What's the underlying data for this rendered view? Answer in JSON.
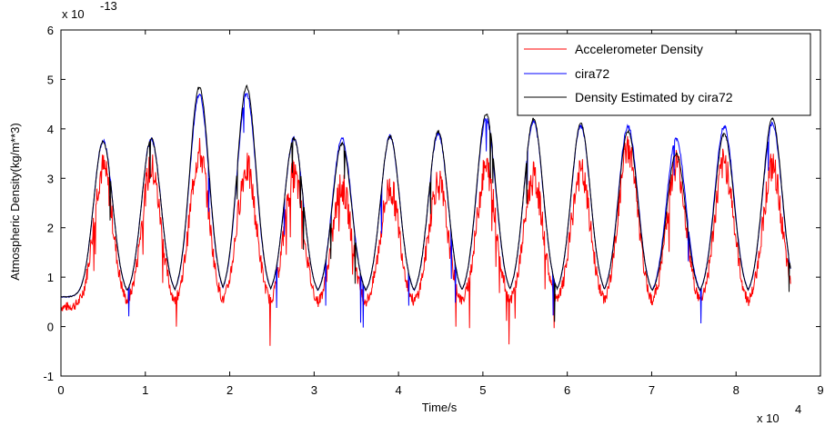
{
  "chart_data": {
    "type": "line",
    "xlabel": "Time/s",
    "ylabel": "Atmospheric Density(kg/m**3)",
    "x_multiplier_label": "x 10",
    "x_multiplier_exp": "4",
    "y_multiplier_label": "x 10",
    "y_multiplier_exp": "-13",
    "xlim": [
      0,
      9
    ],
    "ylim": [
      -1,
      6
    ],
    "x_ticks": [
      0,
      1,
      2,
      3,
      4,
      5,
      6,
      7,
      8,
      9
    ],
    "x_tick_labels": [
      "0",
      "1",
      "2",
      "3",
      "4",
      "5",
      "6",
      "7",
      "8",
      "9"
    ],
    "y_ticks": [
      -1,
      0,
      1,
      2,
      3,
      4,
      5,
      6
    ],
    "y_tick_labels": [
      "-1",
      "0",
      "1",
      "2",
      "3",
      "4",
      "5",
      "6"
    ],
    "grid": false,
    "legend_position": "top-right",
    "peaks": {
      "x": [
        0.5,
        1.07,
        1.64,
        2.2,
        2.76,
        3.33,
        3.9,
        4.47,
        5.04,
        5.6,
        6.16,
        6.72,
        7.29,
        7.86,
        8.43
      ],
      "cira72": [
        3.75,
        3.8,
        4.7,
        4.7,
        3.8,
        3.8,
        3.85,
        3.9,
        4.2,
        4.15,
        4.05,
        4.05,
        3.8,
        4.05,
        4.1
      ],
      "estimated": [
        3.75,
        3.8,
        4.85,
        4.85,
        3.8,
        3.7,
        3.85,
        3.95,
        4.3,
        4.2,
        4.1,
        3.95,
        3.5,
        3.9,
        4.2
      ],
      "accelerometer": [
        3.2,
        3.2,
        3.5,
        3.2,
        3.05,
        2.8,
        2.8,
        2.9,
        3.2,
        3.0,
        3.1,
        3.6,
        3.3,
        3.3,
        3.2
      ]
    },
    "troughs": {
      "cira72": 0.6,
      "estimated": 0.6,
      "accelerometer": 0.4
    },
    "series": [
      {
        "name": "Accelerometer Density",
        "color": "#ff0000"
      },
      {
        "name": "cira72",
        "color": "#0000ff"
      },
      {
        "name": "Density Estimated by cira72",
        "color": "#000000"
      }
    ]
  }
}
